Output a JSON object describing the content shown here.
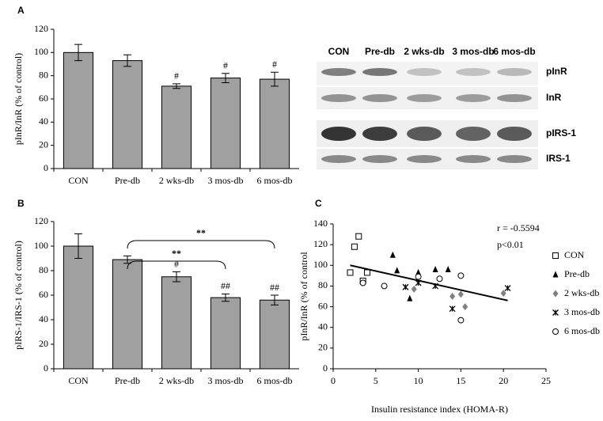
{
  "chart_data": [
    {
      "type": "bar",
      "panel": "A",
      "ylabel": "pInR/InR (% of control)",
      "categories": [
        "CON",
        "Pre-db",
        "2 wks-db",
        "3 mos-db",
        "6 mos-db"
      ],
      "values": [
        100,
        93,
        71,
        78,
        77
      ],
      "errors": [
        7,
        5,
        2,
        4,
        6
      ],
      "value_annotations": [
        null,
        null,
        "#",
        "#",
        "#"
      ],
      "color": "#a0a0a0",
      "ylim": [
        0,
        120
      ],
      "yticks": [
        0,
        20,
        40,
        60,
        80,
        100,
        120
      ]
    },
    {
      "type": "bar",
      "panel": "B",
      "ylabel": "pIRS-1/IRS-1 (% of control)",
      "categories": [
        "CON",
        "Pre-db",
        "2 wks-db",
        "3 mos-db",
        "6 mos-db"
      ],
      "values": [
        100,
        89,
        75,
        58,
        56
      ],
      "errors": [
        10,
        3,
        4,
        3,
        4
      ],
      "value_annotations": [
        null,
        null,
        "#",
        "##",
        "##"
      ],
      "brackets": [
        {
          "from": "Pre-db",
          "to": "3 mos-db",
          "text": "**"
        },
        {
          "from": "Pre-db",
          "to": "6 mos-db",
          "text": "**"
        }
      ],
      "color": "#a0a0a0",
      "ylim": [
        0,
        120
      ],
      "yticks": [
        0,
        20,
        40,
        60,
        80,
        100,
        120
      ]
    },
    {
      "type": "scatter",
      "panel": "C",
      "xlabel": "Insulin resistance index (HOMA-R)",
      "ylabel": "pInR/InR (% of control",
      "annotations": [
        "r = -0.5594",
        "p<0.01"
      ],
      "xlim": [
        0,
        25
      ],
      "xticks": [
        0,
        5,
        10,
        15,
        20,
        25
      ],
      "ylim": [
        0,
        140
      ],
      "yticks": [
        0,
        20,
        40,
        60,
        80,
        100,
        120,
        140
      ],
      "series": [
        {
          "name": "CON",
          "marker": "square",
          "color": "#000000",
          "x": [
            2,
            2.5,
            3,
            3.5,
            4
          ],
          "values": [
            93,
            118,
            128,
            85,
            93
          ]
        },
        {
          "name": "Pre-db",
          "marker": "triangle",
          "color": "#000000",
          "x": [
            7,
            7.5,
            9,
            10,
            12,
            13.5
          ],
          "values": [
            110,
            95,
            68,
            93,
            96,
            96
          ]
        },
        {
          "name": "2 wks-db",
          "marker": "diamond",
          "color": "#808080",
          "x": [
            9.5,
            14,
            15,
            15.5,
            20
          ],
          "values": [
            77,
            70,
            72,
            60,
            73
          ]
        },
        {
          "name": "3 mos-db",
          "marker": "x",
          "color": "#000000",
          "x": [
            8.5,
            10,
            12,
            14,
            20.5
          ],
          "values": [
            79,
            83,
            80,
            58,
            78
          ]
        },
        {
          "name": "6 mos-db",
          "marker": "circle",
          "color": "#000000",
          "x": [
            3.5,
            6,
            10,
            12.5,
            15,
            15
          ],
          "values": [
            83,
            80,
            89,
            87,
            47,
            90
          ]
        }
      ],
      "trend": {
        "x": [
          2,
          20.5
        ],
        "values": [
          100,
          66
        ]
      }
    }
  ],
  "blot": {
    "columns": [
      "CON",
      "Pre-db",
      "2 wks-db",
      "3 mos-db",
      "6 mos-db"
    ],
    "rows": [
      "pInR",
      "InR",
      "pIRS-1",
      "IRS-1"
    ]
  }
}
